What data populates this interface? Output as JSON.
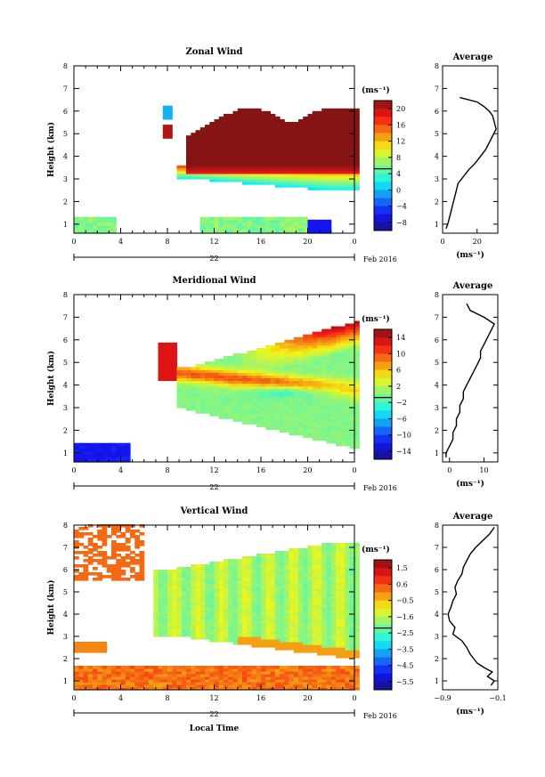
{
  "chart_data": [
    {
      "type": "heatmap",
      "title": "Zonal Wind",
      "ylabel": "Height (km)",
      "xlabel": "",
      "date_label": "22",
      "month_label": "Feb 2016",
      "xticks": [
        "0",
        "4",
        "8",
        "12",
        "16",
        "20",
        "0"
      ],
      "yticks": [
        "1",
        "2",
        "3",
        "4",
        "5",
        "6",
        "7",
        "8"
      ],
      "xlim": [
        0,
        24
      ],
      "ylim": [
        0.6,
        8
      ],
      "colorbar": {
        "unit": "(ms⁻¹)",
        "ticks": [
          "20",
          "16",
          "12",
          "8",
          "4",
          "0",
          "−4",
          "−8"
        ],
        "range": [
          -10,
          22
        ]
      },
      "profile": {
        "title": "Average",
        "xlabel": "(ms⁻¹)",
        "xticks": [
          "0",
          "20"
        ],
        "xlim": [
          0,
          32
        ],
        "heights": [
          0.8,
          1.0,
          1.3,
          1.6,
          1.9,
          2.2,
          2.5,
          2.8,
          3.1,
          3.4,
          3.7,
          4.0,
          4.3,
          4.6,
          4.9,
          5.2,
          5.5,
          5.8,
          6.0,
          6.2,
          6.4,
          6.6
        ],
        "values": [
          2,
          3,
          4,
          5,
          6,
          7,
          8,
          9,
          12,
          15,
          19,
          22,
          25,
          27,
          29,
          31,
          30,
          29,
          27,
          24,
          20,
          10
        ]
      }
    },
    {
      "type": "heatmap",
      "title": "Meridional Wind",
      "ylabel": "Height (km)",
      "xlabel": "",
      "date_label": "22",
      "month_label": "Feb 2016",
      "xticks": [
        "0",
        "4",
        "8",
        "12",
        "16",
        "20",
        "0"
      ],
      "yticks": [
        "1",
        "2",
        "3",
        "4",
        "5",
        "6",
        "7",
        "8"
      ],
      "xlim": [
        0,
        24
      ],
      "ylim": [
        0.6,
        8
      ],
      "colorbar": {
        "unit": "(ms⁻¹)",
        "ticks": [
          "14",
          "10",
          "6",
          "2",
          "−2",
          "−6",
          "−10",
          "−14"
        ],
        "range": [
          -16,
          16
        ]
      },
      "profile": {
        "title": "Average",
        "xlabel": "(ms⁻¹)",
        "xticks": [
          "0",
          "10"
        ],
        "xlim": [
          -2,
          14
        ],
        "heights": [
          0.8,
          1.0,
          1.3,
          1.6,
          1.9,
          2.2,
          2.5,
          2.8,
          3.1,
          3.4,
          3.7,
          4.0,
          4.3,
          4.6,
          4.9,
          5.2,
          5.5,
          5.8,
          6.1,
          6.4,
          6.7,
          7.0,
          7.3,
          7.6
        ],
        "values": [
          -1,
          -1,
          0,
          1,
          1,
          2,
          2,
          3,
          3,
          4,
          4,
          5,
          6,
          7,
          8,
          9,
          9,
          10,
          11,
          12,
          13,
          10,
          6,
          5
        ]
      }
    },
    {
      "type": "heatmap",
      "title": "Vertical Wind",
      "ylabel": "Height (km)",
      "xlabel": "Local Time",
      "date_label": "22",
      "month_label": "Feb 2016",
      "xticks": [
        "0",
        "4",
        "8",
        "12",
        "16",
        "20",
        "0"
      ],
      "yticks": [
        "1",
        "2",
        "3",
        "4",
        "5",
        "6",
        "7",
        "8"
      ],
      "xlim": [
        0,
        24
      ],
      "ylim": [
        0.6,
        8
      ],
      "colorbar": {
        "unit": "(ms⁻¹)",
        "ticks": [
          "1.5",
          "0.6",
          "−0.5",
          "−1.6",
          "−2.5",
          "−3.5",
          "−4.5",
          "−5.5"
        ],
        "range": [
          -6,
          2
        ]
      },
      "profile": {
        "title": "Average",
        "xlabel": "(ms⁻¹)",
        "xticks": [
          "−0.9",
          "−0.1"
        ],
        "xlim": [
          -0.9,
          -0.1
        ],
        "heights": [
          0.8,
          1.0,
          1.2,
          1.4,
          1.6,
          1.8,
          2.0,
          2.2,
          2.5,
          2.8,
          3.1,
          3.4,
          3.7,
          4.0,
          4.3,
          4.6,
          4.9,
          5.2,
          5.5,
          5.8,
          6.1,
          6.4,
          6.7,
          7.0,
          7.3,
          7.6,
          7.9
        ],
        "values": [
          -0.2,
          -0.15,
          -0.25,
          -0.18,
          -0.3,
          -0.4,
          -0.45,
          -0.5,
          -0.55,
          -0.62,
          -0.75,
          -0.72,
          -0.8,
          -0.82,
          -0.78,
          -0.75,
          -0.7,
          -0.72,
          -0.68,
          -0.62,
          -0.6,
          -0.55,
          -0.5,
          -0.42,
          -0.32,
          -0.22,
          -0.15
        ]
      }
    }
  ]
}
